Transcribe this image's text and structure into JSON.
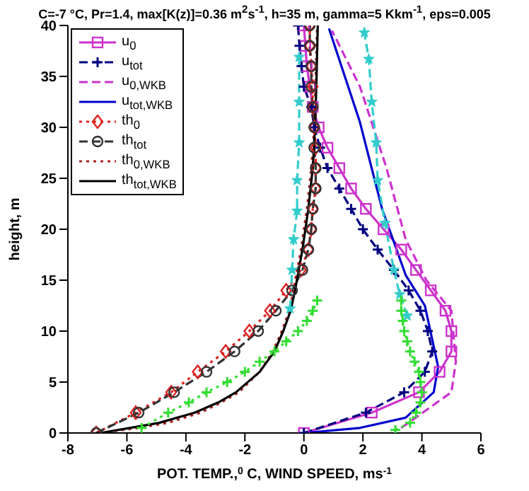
{
  "chart_data": {
    "type": "line",
    "title": "C=-7 °C, Pr=1.4, max[K(z)]=0.36 m$^{2}$s$^{-1}$, h=35 m, gamma=5 Kkm$^{-1}$, eps=0.005",
    "xlabel": "POT. TEMP.,$^{0}$ C, WIND SPEED, ms$^{-1}$",
    "ylabel": "height, m",
    "xlim": [
      -8,
      6
    ],
    "xticks": [
      -8,
      -6,
      -4,
      -2,
      0,
      2,
      4,
      6
    ],
    "ylim": [
      0,
      40
    ],
    "yticks": [
      0,
      5,
      10,
      15,
      20,
      25,
      30,
      35,
      40
    ],
    "legend": "top left",
    "series": [
      {
        "name": "u$_{0}$",
        "color": "#cc33cc",
        "marker": "square",
        "line_style": "solid",
        "x": [
          0,
          2.3,
          3.9,
          4.6,
          5.0,
          5.0,
          4.8,
          4.3,
          3.8,
          3.3,
          2.7,
          2.1,
          1.6,
          1.2,
          0.8,
          0.5,
          0.3,
          0.2,
          0.1,
          0.05,
          0
        ],
        "values": [
          0,
          2,
          4,
          6,
          8,
          10,
          12,
          14,
          16,
          18,
          20,
          22,
          24,
          26,
          28,
          30,
          32,
          34,
          36,
          38,
          40
        ]
      },
      {
        "name": "u$_{tot}$",
        "color": "#000080",
        "marker": "cross",
        "line_style": "dashed",
        "x": [
          0,
          2.1,
          3.4,
          4.1,
          4.35,
          4.2,
          3.95,
          3.55,
          3.05,
          2.5,
          2.0,
          1.6,
          1.2,
          0.8,
          0.55,
          0.35,
          0.25,
          0,
          -0.08,
          -0.15,
          -0.2
        ],
        "values": [
          0,
          2,
          4,
          6,
          8,
          10,
          12,
          14,
          16,
          18,
          20,
          22,
          24,
          26,
          28,
          30,
          32,
          34,
          36,
          38,
          40
        ]
      },
      {
        "name": "u$_{0,WKB}$",
        "color": "#cc33cc",
        "marker": "none",
        "line_style": "dashed",
        "x": [
          3.3,
          5.0,
          5.15,
          5.0,
          4.15,
          3.45,
          2.8,
          1.9,
          0.95
        ],
        "values": [
          0.5,
          4,
          7,
          12,
          15,
          19,
          26,
          34,
          39.5
        ]
      },
      {
        "name": "u$_{tot,WKB}$",
        "color": "#0000cc",
        "marker": "none",
        "line_style": "solid",
        "x": [
          0,
          1.9,
          3.45,
          4.4,
          4.55,
          4.1,
          3.45,
          2.65,
          1.9,
          0.85
        ],
        "values": [
          0,
          0.5,
          1.5,
          4,
          6.5,
          12.5,
          15.5,
          22,
          30.5,
          39.7
        ]
      },
      {
        "name": "th$_{0}$",
        "color": "#dd2222",
        "marker": "diamond",
        "line_style": "dotted",
        "x": [
          -7.04,
          -5.7,
          -4.5,
          -3.6,
          -2.65,
          -1.85,
          -1.15,
          -0.6,
          -0.1,
          0.15,
          0.25,
          0.3,
          0.4,
          0.4,
          0.4,
          0.35,
          0.3,
          0.3,
          0.25,
          0.2,
          0.2
        ],
        "values": [
          0,
          2,
          4,
          6,
          8,
          10,
          12,
          14,
          16,
          18,
          20,
          22,
          24,
          26,
          28,
          30,
          32,
          34,
          36,
          38,
          40
        ]
      },
      {
        "name": "th$_{tot}$",
        "color": "#333333",
        "marker": "circle",
        "line_style": "dashed",
        "x": [
          -7.04,
          -5.6,
          -4.4,
          -3.3,
          -2.35,
          -1.55,
          -0.95,
          -0.4,
          -0.05,
          0.15,
          0.25,
          0.3,
          0.4,
          0.4,
          0.35,
          0.35,
          0.3,
          0.25,
          0.25,
          0.2,
          0.2
        ],
        "values": [
          0,
          2,
          4,
          6,
          8,
          10,
          12,
          14,
          16,
          18,
          20,
          22,
          24,
          26,
          28,
          30,
          32,
          34,
          36,
          38,
          40
        ]
      },
      {
        "name": "th$_{0,WKB}$",
        "color": "#aa2222",
        "marker": "none",
        "line_style": "dotted",
        "x": [
          -6.9,
          -5.6,
          -4.6,
          -3.5,
          -2.8,
          -2.2,
          -1.5,
          -1.05,
          -0.75,
          -0.5,
          -0.35,
          -0.1,
          0.1,
          0.25,
          0.35,
          0.4,
          0.45
        ],
        "values": [
          0,
          0.5,
          1,
          2,
          3,
          4,
          6,
          8,
          10,
          12,
          14,
          18,
          22,
          26,
          30,
          35,
          40
        ]
      },
      {
        "name": "th$_{tot,WKB}$",
        "color": "#000000",
        "marker": "none",
        "line_style": "solid",
        "x": [
          -6.9,
          -5.9,
          -4.9,
          -3.7,
          -2.9,
          -2.3,
          -1.5,
          -1.0,
          -0.7,
          -0.45,
          -0.3,
          -0.05,
          0.15,
          0.3,
          0.38,
          0.43,
          0.47
        ],
        "values": [
          0,
          0.5,
          1,
          2,
          3,
          4,
          6,
          8,
          10,
          12,
          14,
          18,
          22,
          26,
          30,
          35,
          40
        ]
      },
      {
        "color": "#33cccc",
        "marker": "star",
        "line_style": "dashed",
        "x": [
          3.5,
          3.25,
          3.05,
          2.75,
          2.5,
          2.45,
          2.3,
          2.2,
          2.05
        ],
        "values": [
          11.5,
          13.6,
          16,
          20.6,
          24.8,
          28.5,
          32.5,
          36.7,
          39.3
        ]
      },
      {
        "color": "#33cccc",
        "marker": "star",
        "line_style": "dashed",
        "x": [
          -0.47,
          -0.4,
          -0.35,
          -0.23,
          -0.23,
          -0.16,
          -0.16,
          -0.16
        ],
        "values": [
          12.2,
          16,
          19,
          21.8,
          24.8,
          28.5,
          32.5,
          36.9
        ]
      },
      {
        "color": "#33dd33",
        "marker": "cross",
        "line_style": "dotted",
        "x": [
          -5.5,
          -4.6,
          -3.9,
          -3.3,
          -2.6,
          -2.0,
          -1.5,
          -1.0,
          -0.6,
          -0.2,
          0.1,
          0.3,
          0.45
        ],
        "values": [
          0.5,
          2,
          3,
          4,
          5,
          6,
          7,
          8,
          9,
          10,
          11,
          12,
          13
        ]
      },
      {
        "color": "#33dd33",
        "marker": "cross",
        "line_style": "dotted",
        "x": [
          3.1,
          3.6,
          3.8,
          3.95,
          4.0,
          3.95,
          3.9,
          3.75,
          3.6,
          3.5,
          3.4,
          3.35,
          3.3,
          3.3
        ],
        "values": [
          0.3,
          1,
          2,
          3,
          4,
          5,
          6,
          7,
          8,
          9,
          10,
          11,
          12,
          13
        ]
      }
    ]
  }
}
